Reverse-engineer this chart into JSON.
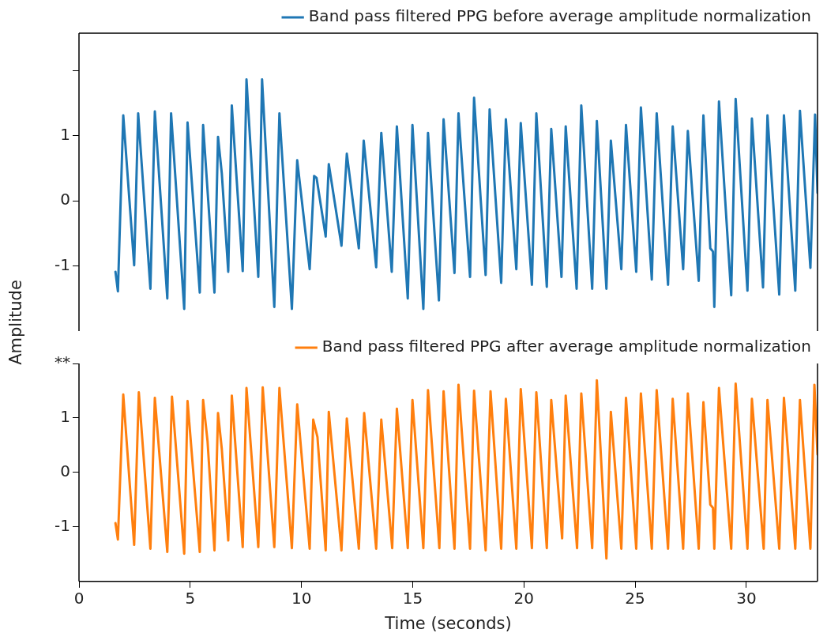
{
  "chart_data": [
    {
      "type": "line",
      "tick_labels": "y",
      "xlim": [
        0,
        33.2
      ],
      "xticks": [
        0,
        5,
        10,
        15,
        20,
        25,
        30
      ],
      "ylim": [
        -2,
        2.57
      ],
      "yticks": [
        -1,
        0,
        1,
        {
          "value": 2,
          "label": null
        }
      ],
      "grid": false,
      "legend": "top right",
      "marker": "none",
      "line_style": "solid",
      "series": [
        {
          "name": "Band pass filtered PPG before average amplitude normalization",
          "color": "#1f77b4",
          "x": [
            1.64,
            1.75,
            1.99,
            2.48,
            2.66,
            3.21,
            3.41,
            3.97,
            4.14,
            4.73,
            4.88,
            5.43,
            5.58,
            6.09,
            6.25,
            6.42,
            6.71,
            6.87,
            7.36,
            7.53,
            8.06,
            8.23,
            8.78,
            9.01,
            9.57,
            9.81,
            10.37,
            10.57,
            10.68,
            11.09,
            11.23,
            11.8,
            12.04,
            12.58,
            12.8,
            13.36,
            13.59,
            14.06,
            14.29,
            14.78,
            14.99,
            15.48,
            15.69,
            16.18,
            16.39,
            16.88,
            17.06,
            17.58,
            17.76,
            18.28,
            18.46,
            18.98,
            19.19,
            19.66,
            19.86,
            20.36,
            20.56,
            21.03,
            21.23,
            21.69,
            21.88,
            22.37,
            22.58,
            23.07,
            23.28,
            23.71,
            23.91,
            24.38,
            24.59,
            25.05,
            25.26,
            25.75,
            25.97,
            26.48,
            26.69,
            27.16,
            27.37,
            27.86,
            28.07,
            28.38,
            28.5,
            28.56,
            28.77,
            29.32,
            29.52,
            30.05,
            30.25,
            30.75,
            30.95,
            31.48,
            31.69,
            32.2,
            32.41,
            32.88,
            33.09,
            33.2
          ],
          "values": [
            -1.09,
            -1.39,
            1.31,
            -0.99,
            1.34,
            -1.35,
            1.37,
            -1.5,
            1.34,
            -1.66,
            1.2,
            -1.41,
            1.16,
            -1.41,
            0.98,
            0.42,
            -1.09,
            1.46,
            -1.08,
            1.86,
            -1.17,
            1.86,
            -1.63,
            1.34,
            -1.66,
            0.62,
            -1.05,
            0.38,
            0.35,
            -0.55,
            0.56,
            -0.69,
            0.72,
            -0.73,
            0.92,
            -1.02,
            1.04,
            -1.09,
            1.14,
            -1.5,
            1.16,
            -1.66,
            1.04,
            -1.53,
            1.25,
            -1.11,
            1.34,
            -1.17,
            1.58,
            -1.14,
            1.4,
            -1.26,
            1.25,
            -1.05,
            1.19,
            -1.29,
            1.34,
            -1.32,
            1.1,
            -1.17,
            1.14,
            -1.35,
            1.46,
            -1.35,
            1.22,
            -1.35,
            0.92,
            -1.05,
            1.16,
            -1.09,
            1.43,
            -1.21,
            1.34,
            -1.29,
            1.14,
            -1.05,
            1.07,
            -1.23,
            1.31,
            -0.73,
            -0.78,
            -1.63,
            1.52,
            -1.45,
            1.56,
            -1.38,
            1.26,
            -1.33,
            1.31,
            -1.44,
            1.31,
            -1.38,
            1.38,
            -1.03,
            1.32,
            0.12
          ]
        }
      ]
    },
    {
      "type": "line",
      "xlabel": "Time (seconds)",
      "ylabel": "Amplitude",
      "xlim": [
        0,
        33.2
      ],
      "xticks": [
        0,
        5,
        10,
        15,
        20,
        25,
        30
      ],
      "ylim": [
        -2,
        2
      ],
      "yticks": [
        -1,
        0,
        1,
        {
          "value": 2,
          "label": "**"
        }
      ],
      "grid": false,
      "legend": "top right",
      "marker": "none",
      "line_style": "solid",
      "series": [
        {
          "name": "Band pass filtered PPG after average amplitude normalization",
          "color": "#ff7f0e",
          "x": [
            1.64,
            1.75,
            1.99,
            2.48,
            2.69,
            3.21,
            3.41,
            3.97,
            4.18,
            4.73,
            4.88,
            5.43,
            5.58,
            5.78,
            6.09,
            6.25,
            6.42,
            6.71,
            6.87,
            7.36,
            7.53,
            8.06,
            8.26,
            8.78,
            9.01,
            9.57,
            9.81,
            10.37,
            10.53,
            10.72,
            11.09,
            11.23,
            11.8,
            12.04,
            12.58,
            12.82,
            13.36,
            13.59,
            14.08,
            14.29,
            14.78,
            14.99,
            15.48,
            15.69,
            16.2,
            16.39,
            16.88,
            17.06,
            17.58,
            17.76,
            18.28,
            18.5,
            18.98,
            19.19,
            19.66,
            19.86,
            20.36,
            20.56,
            21.03,
            21.23,
            21.72,
            21.88,
            22.39,
            22.58,
            23.07,
            23.28,
            23.71,
            23.91,
            24.38,
            24.59,
            25.05,
            25.26,
            25.75,
            25.97,
            26.48,
            26.69,
            27.16,
            27.37,
            27.86,
            28.07,
            28.38,
            28.5,
            28.56,
            28.77,
            29.32,
            29.52,
            30.05,
            30.25,
            30.78,
            30.95,
            31.48,
            31.69,
            32.2,
            32.41,
            32.88,
            33.06,
            33.2
          ],
          "values": [
            -0.93,
            -1.23,
            1.43,
            -1.33,
            1.47,
            -1.4,
            1.37,
            -1.46,
            1.39,
            -1.49,
            1.31,
            -1.46,
            1.33,
            0.57,
            -1.43,
            1.09,
            0.43,
            -1.25,
            1.41,
            -1.37,
            1.55,
            -1.37,
            1.56,
            -1.37,
            1.55,
            -1.39,
            1.25,
            -1.4,
            0.97,
            0.65,
            -1.43,
            1.11,
            -1.43,
            0.99,
            -1.4,
            1.09,
            -1.4,
            0.97,
            -1.39,
            1.17,
            -1.39,
            1.33,
            -1.39,
            1.51,
            -1.39,
            1.49,
            -1.4,
            1.61,
            -1.4,
            1.5,
            -1.43,
            1.49,
            -1.4,
            1.35,
            -1.4,
            1.53,
            -1.39,
            1.47,
            -1.39,
            1.33,
            -1.21,
            1.41,
            -1.39,
            1.45,
            -1.39,
            1.69,
            -1.58,
            1.11,
            -1.4,
            1.37,
            -1.4,
            1.45,
            -1.4,
            1.51,
            -1.4,
            1.35,
            -1.4,
            1.45,
            -1.4,
            1.29,
            -0.59,
            -0.65,
            -1.4,
            1.55,
            -1.4,
            1.63,
            -1.4,
            1.35,
            -1.4,
            1.33,
            -1.4,
            1.37,
            -1.4,
            1.33,
            -1.4,
            1.61,
            0.33
          ]
        }
      ]
    }
  ]
}
